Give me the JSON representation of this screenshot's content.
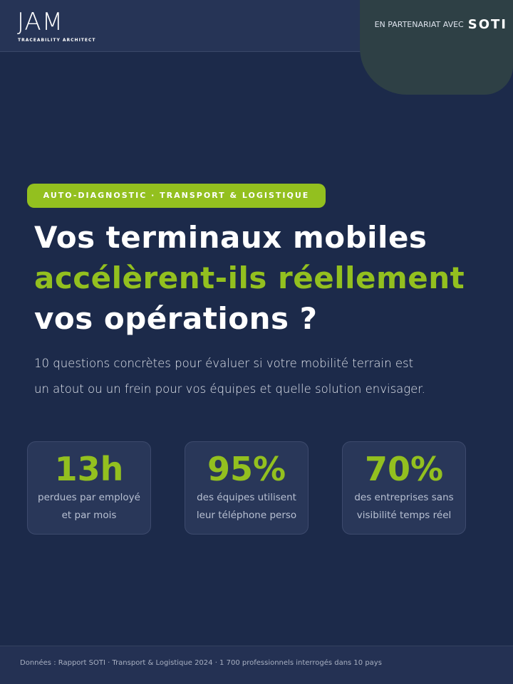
{
  "header": {
    "logo": "JAM",
    "logo_tagline": "TRACEABILITY ARCHITECT",
    "partner_label": "EN PARTENARIAT AVEC",
    "partner_name": "SOTI"
  },
  "badge": "AUTO-DIAGNOSTIC · TRANSPORT & LOGISTIQUE",
  "title": {
    "line1": "Vos terminaux mobiles",
    "line2": "accélèrent-ils réellement",
    "line3": "vos opérations ?"
  },
  "subtitle": {
    "line1": "10 questions concrètes pour évaluer si votre mobilité terrain est",
    "line2": "un atout ou un frein pour vos équipes et quelle solution envisager."
  },
  "stats": [
    {
      "value": "13h",
      "caption_line1": "perdues par employé",
      "caption_line2": "et par mois"
    },
    {
      "value": "95%",
      "caption_line1": "des équipes utilisent",
      "caption_line2": "leur téléphone perso"
    },
    {
      "value": "70%",
      "caption_line1": "des entreprises sans",
      "caption_line2": "visibilité temps réel"
    }
  ],
  "footer": "Données : Rapport SOTI · Transport & Logistique 2024 · 1 700 professionnels interrogés dans 10 pays"
}
